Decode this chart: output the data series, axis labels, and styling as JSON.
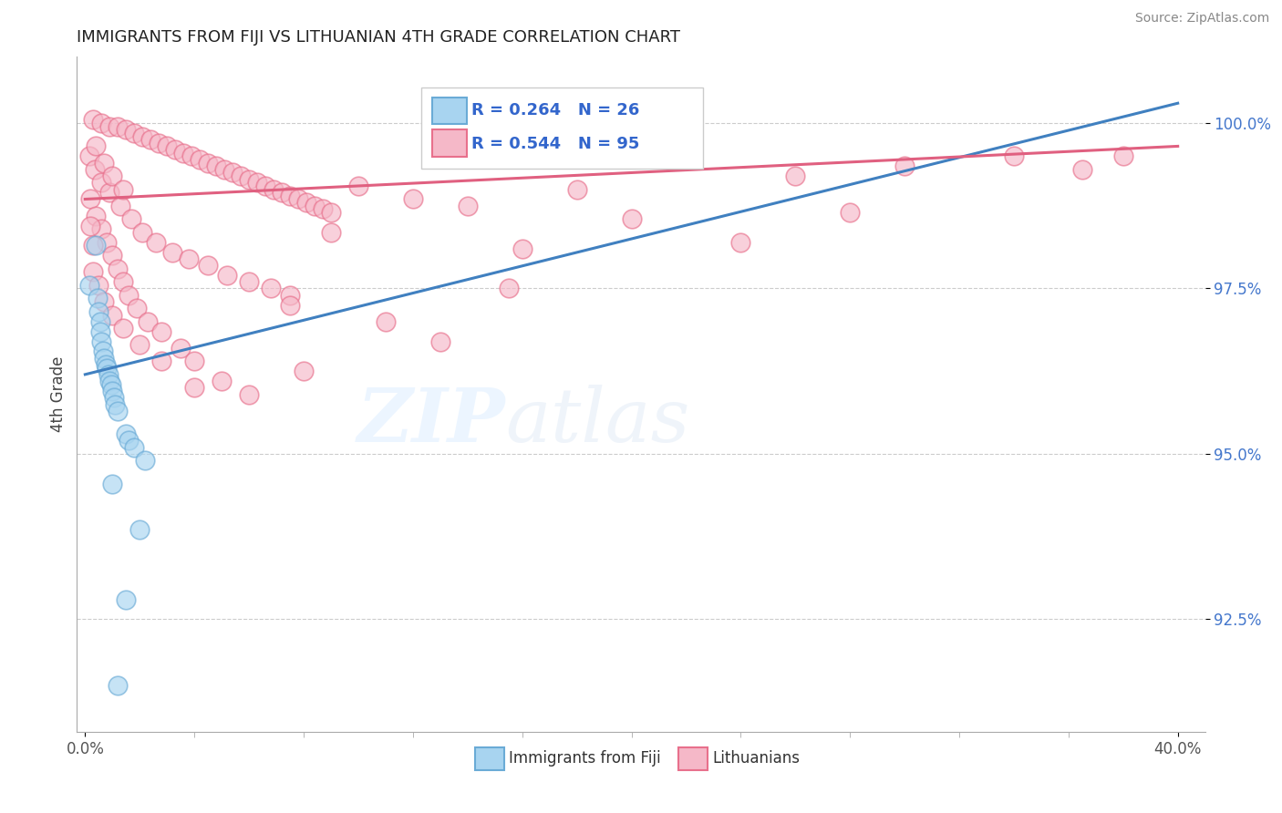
{
  "title": "IMMIGRANTS FROM FIJI VS LITHUANIAN 4TH GRADE CORRELATION CHART",
  "source": "Source: ZipAtlas.com",
  "ylabel": "4th Grade",
  "legend_fiji_r": "R = 0.264",
  "legend_fiji_n": "N = 26",
  "legend_lith_r": "R = 0.544",
  "legend_lith_n": "N = 95",
  "fiji_color": "#a8d4f0",
  "fiji_edge_color": "#6aabd6",
  "lith_color": "#f5b8c8",
  "lith_edge_color": "#e8708c",
  "fiji_line_color": "#4080c0",
  "lith_line_color": "#e06080",
  "background_color": "#ffffff",
  "xlim": [
    -0.3,
    41.0
  ],
  "ylim": [
    90.8,
    101.0
  ],
  "yticks": [
    92.5,
    95.0,
    97.5,
    100.0
  ],
  "fiji_line_x": [
    0,
    40
  ],
  "fiji_line_y": [
    96.2,
    100.3
  ],
  "lith_line_x": [
    0,
    40
  ],
  "lith_line_y": [
    98.85,
    99.65
  ],
  "fiji_points": [
    [
      0.15,
      97.55
    ],
    [
      0.4,
      98.15
    ],
    [
      0.45,
      97.35
    ],
    [
      0.5,
      97.15
    ],
    [
      0.55,
      97.0
    ],
    [
      0.55,
      96.85
    ],
    [
      0.6,
      96.7
    ],
    [
      0.65,
      96.55
    ],
    [
      0.7,
      96.45
    ],
    [
      0.75,
      96.35
    ],
    [
      0.8,
      96.3
    ],
    [
      0.85,
      96.2
    ],
    [
      0.9,
      96.1
    ],
    [
      0.95,
      96.05
    ],
    [
      1.0,
      95.95
    ],
    [
      1.05,
      95.85
    ],
    [
      1.1,
      95.75
    ],
    [
      1.2,
      95.65
    ],
    [
      1.5,
      95.3
    ],
    [
      1.6,
      95.2
    ],
    [
      1.8,
      95.1
    ],
    [
      2.2,
      94.9
    ],
    [
      1.0,
      94.55
    ],
    [
      2.0,
      93.85
    ],
    [
      1.5,
      92.8
    ],
    [
      1.2,
      91.5
    ]
  ],
  "lith_points": [
    [
      0.3,
      100.05
    ],
    [
      0.6,
      100.0
    ],
    [
      0.9,
      99.95
    ],
    [
      1.2,
      99.95
    ],
    [
      1.5,
      99.9
    ],
    [
      1.8,
      99.85
    ],
    [
      2.1,
      99.8
    ],
    [
      2.4,
      99.75
    ],
    [
      2.7,
      99.7
    ],
    [
      3.0,
      99.65
    ],
    [
      3.3,
      99.6
    ],
    [
      3.6,
      99.55
    ],
    [
      3.9,
      99.5
    ],
    [
      4.2,
      99.45
    ],
    [
      4.5,
      99.4
    ],
    [
      4.8,
      99.35
    ],
    [
      5.1,
      99.3
    ],
    [
      5.4,
      99.25
    ],
    [
      5.7,
      99.2
    ],
    [
      6.0,
      99.15
    ],
    [
      6.3,
      99.1
    ],
    [
      6.6,
      99.05
    ],
    [
      6.9,
      99.0
    ],
    [
      7.2,
      98.95
    ],
    [
      7.5,
      98.9
    ],
    [
      7.8,
      98.85
    ],
    [
      8.1,
      98.8
    ],
    [
      8.4,
      98.75
    ],
    [
      8.7,
      98.7
    ],
    [
      9.0,
      98.65
    ],
    [
      0.15,
      99.5
    ],
    [
      0.35,
      99.3
    ],
    [
      0.6,
      99.1
    ],
    [
      0.9,
      98.95
    ],
    [
      1.3,
      98.75
    ],
    [
      1.7,
      98.55
    ],
    [
      2.1,
      98.35
    ],
    [
      2.6,
      98.2
    ],
    [
      3.2,
      98.05
    ],
    [
      3.8,
      97.95
    ],
    [
      4.5,
      97.85
    ],
    [
      5.2,
      97.7
    ],
    [
      6.0,
      97.6
    ],
    [
      6.8,
      97.5
    ],
    [
      7.5,
      97.4
    ],
    [
      0.2,
      98.85
    ],
    [
      0.4,
      98.6
    ],
    [
      0.6,
      98.4
    ],
    [
      0.8,
      98.2
    ],
    [
      1.0,
      98.0
    ],
    [
      1.2,
      97.8
    ],
    [
      1.4,
      97.6
    ],
    [
      1.6,
      97.4
    ],
    [
      1.9,
      97.2
    ],
    [
      2.3,
      97.0
    ],
    [
      2.8,
      96.85
    ],
    [
      3.5,
      96.6
    ],
    [
      4.0,
      96.4
    ],
    [
      5.0,
      96.1
    ],
    [
      6.0,
      95.9
    ],
    [
      0.3,
      97.75
    ],
    [
      0.5,
      97.55
    ],
    [
      0.7,
      97.3
    ],
    [
      1.0,
      97.1
    ],
    [
      1.4,
      96.9
    ],
    [
      2.0,
      96.65
    ],
    [
      2.8,
      96.4
    ],
    [
      4.0,
      96.0
    ],
    [
      0.4,
      99.65
    ],
    [
      0.7,
      99.4
    ],
    [
      1.0,
      99.2
    ],
    [
      1.4,
      99.0
    ],
    [
      0.2,
      98.45
    ],
    [
      0.3,
      98.15
    ],
    [
      10.0,
      99.05
    ],
    [
      14.0,
      98.75
    ],
    [
      18.0,
      99.0
    ],
    [
      22.0,
      99.6
    ],
    [
      26.0,
      99.2
    ],
    [
      30.0,
      99.35
    ],
    [
      34.0,
      99.5
    ],
    [
      36.5,
      99.3
    ],
    [
      38.0,
      99.5
    ],
    [
      9.0,
      98.35
    ],
    [
      12.0,
      98.85
    ],
    [
      16.0,
      98.1
    ],
    [
      20.0,
      98.55
    ],
    [
      24.0,
      98.2
    ],
    [
      28.0,
      98.65
    ],
    [
      7.5,
      97.25
    ],
    [
      11.0,
      97.0
    ],
    [
      15.5,
      97.5
    ],
    [
      8.0,
      96.25
    ],
    [
      13.0,
      96.7
    ]
  ]
}
